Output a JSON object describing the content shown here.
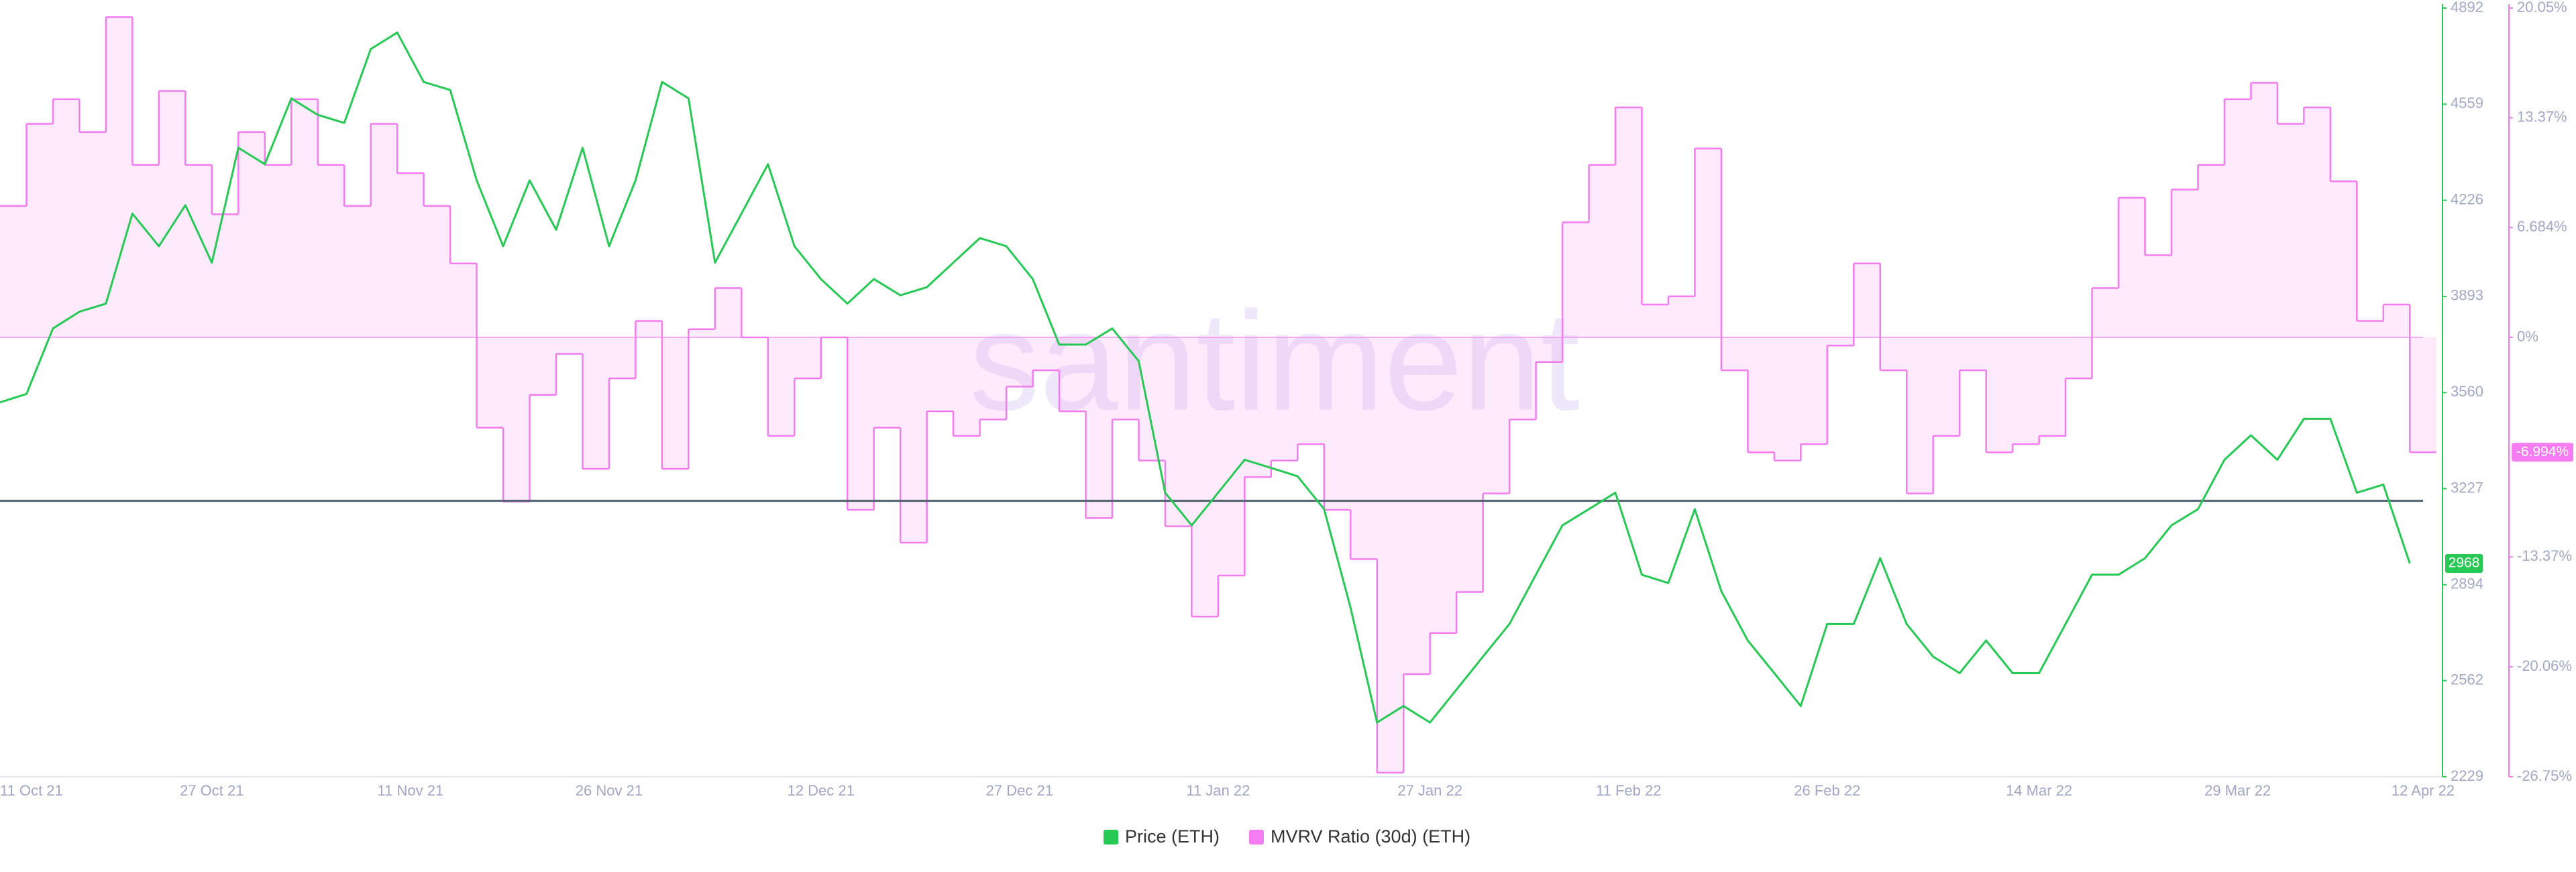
{
  "chart_data": {
    "type": "line",
    "watermark": "santiment",
    "x": [
      "2021-10-11",
      "2021-10-13",
      "2021-10-15",
      "2021-10-17",
      "2021-10-19",
      "2021-10-21",
      "2021-10-23",
      "2021-10-25",
      "2021-10-27",
      "2021-10-29",
      "2021-10-31",
      "2021-11-02",
      "2021-11-04",
      "2021-11-06",
      "2021-11-08",
      "2021-11-10",
      "2021-11-12",
      "2021-11-14",
      "2021-11-16",
      "2021-11-18",
      "2021-11-20",
      "2021-11-22",
      "2021-11-24",
      "2021-11-26",
      "2021-11-28",
      "2021-11-30",
      "2021-12-02",
      "2021-12-04",
      "2021-12-06",
      "2021-12-08",
      "2021-12-10",
      "2021-12-12",
      "2021-12-14",
      "2021-12-16",
      "2021-12-18",
      "2021-12-20",
      "2021-12-22",
      "2021-12-24",
      "2021-12-26",
      "2021-12-28",
      "2021-12-30",
      "2022-01-01",
      "2022-01-03",
      "2022-01-05",
      "2022-01-07",
      "2022-01-09",
      "2022-01-11",
      "2022-01-13",
      "2022-01-15",
      "2022-01-17",
      "2022-01-19",
      "2022-01-21",
      "2022-01-23",
      "2022-01-25",
      "2022-01-27",
      "2022-01-29",
      "2022-01-31",
      "2022-02-02",
      "2022-02-04",
      "2022-02-06",
      "2022-02-08",
      "2022-02-10",
      "2022-02-12",
      "2022-02-14",
      "2022-02-16",
      "2022-02-18",
      "2022-02-20",
      "2022-02-22",
      "2022-02-24",
      "2022-02-26",
      "2022-02-28",
      "2022-03-02",
      "2022-03-04",
      "2022-03-06",
      "2022-03-08",
      "2022-03-10",
      "2022-03-12",
      "2022-03-14",
      "2022-03-16",
      "2022-03-18",
      "2022-03-20",
      "2022-03-22",
      "2022-03-24",
      "2022-03-26",
      "2022-03-28",
      "2022-03-30",
      "2022-04-01",
      "2022-04-03",
      "2022-04-05",
      "2022-04-07",
      "2022-04-09",
      "2022-04-11"
    ],
    "xlim": [
      "2021-10-11",
      "2022-04-12"
    ],
    "xticks": [
      {
        "value": "2021-10-11",
        "label": "11 Oct 21"
      },
      {
        "value": "2021-10-27",
        "label": "27 Oct 21"
      },
      {
        "value": "2021-11-11",
        "label": "11 Nov 21"
      },
      {
        "value": "2021-11-26",
        "label": "26 Nov 21"
      },
      {
        "value": "2021-12-12",
        "label": "12 Dec 21"
      },
      {
        "value": "2021-12-27",
        "label": "27 Dec 21"
      },
      {
        "value": "2022-01-11",
        "label": "11 Jan 22"
      },
      {
        "value": "2022-01-27",
        "label": "27 Jan 22"
      },
      {
        "value": "2022-02-11",
        "label": "11 Feb 22"
      },
      {
        "value": "2022-02-26",
        "label": "26 Feb 22"
      },
      {
        "value": "2022-03-14",
        "label": "14 Mar 22"
      },
      {
        "value": "2022-03-29",
        "label": "29 Mar 22"
      },
      {
        "value": "2022-04-12",
        "label": "12 Apr 22"
      }
    ],
    "ylim": [
      2229,
      4892
    ],
    "yticks": [
      2229,
      2562,
      2894,
      3227,
      3560,
      3893,
      4226,
      4559,
      4892
    ],
    "y2lim": [
      -26.75,
      20.05
    ],
    "y2ticks": [
      {
        "value": -26.75,
        "label": "-26.75%"
      },
      {
        "value": -20.06,
        "label": "-20.06%"
      },
      {
        "value": -13.37,
        "label": "-13.37%"
      },
      {
        "value": 0,
        "label": "0%"
      },
      {
        "value": 6.684,
        "label": "6.684%"
      },
      {
        "value": 13.37,
        "label": "13.37%"
      },
      {
        "value": 20.05,
        "label": "20.05%"
      }
    ],
    "hline": {
      "value": 3185,
      "color": "#4e5f6e"
    },
    "series": [
      {
        "name": "Price (ETH)",
        "color": "#26c953",
        "axis": "y",
        "style": "line",
        "values": [
          3526,
          3555,
          3782,
          3840,
          3868,
          4180,
          4067,
          4209,
          4010,
          4408,
          4351,
          4579,
          4522,
          4494,
          4750,
          4807,
          4636,
          4608,
          4295,
          4067,
          4295,
          4124,
          4408,
          4067,
          4295,
          4636,
          4579,
          4010,
          4180,
          4351,
          4067,
          3953,
          3868,
          3953,
          3897,
          3925,
          4010,
          4095,
          4067,
          3953,
          3726,
          3726,
          3782,
          3669,
          3213,
          3100,
          3213,
          3327,
          3299,
          3270,
          3156,
          2815,
          2417,
          2474,
          2417,
          2531,
          2645,
          2758,
          2929,
          3100,
          3156,
          3213,
          2929,
          2900,
          3156,
          2872,
          2701,
          2588,
          2474,
          2758,
          2758,
          2986,
          2758,
          2645,
          2588,
          2701,
          2588,
          2588,
          2758,
          2929,
          2929,
          2986,
          3100,
          3156,
          3327,
          3412,
          3327,
          3469,
          3469,
          3213,
          3241,
          2968
        ]
      },
      {
        "name": "MVRV Ratio (30d) (ETH)",
        "color": "#f47cf0",
        "axis": "y2",
        "style": "step-area",
        "last_value_label": "-6.994%",
        "values": [
          8.0,
          13.0,
          14.5,
          12.5,
          19.5,
          10.5,
          15.0,
          10.5,
          7.5,
          12.5,
          10.5,
          14.5,
          10.5,
          8.0,
          13.0,
          10.0,
          8.0,
          4.5,
          -5.5,
          -10.0,
          -3.5,
          -1.0,
          -8.0,
          -2.5,
          1.0,
          -8.0,
          0.5,
          3.0,
          0,
          -6.0,
          -2.5,
          0,
          -10.5,
          -5.5,
          -12.5,
          -4.5,
          -6.0,
          -5.0,
          -3.0,
          -2.0,
          -4.5,
          -11.0,
          -5.0,
          -7.5,
          -11.5,
          -17.0,
          -14.5,
          -8.5,
          -7.5,
          -6.5,
          -10.5,
          -13.5,
          -26.5,
          -20.5,
          -18.0,
          -15.5,
          -9.5,
          -5.0,
          -1.5,
          7.0,
          10.5,
          14.0,
          2.0,
          2.5,
          11.5,
          -2.0,
          -7.0,
          -7.5,
          -6.5,
          -0.5,
          4.5,
          -2.0,
          -9.5,
          -6.0,
          -2.0,
          -7.0,
          -6.5,
          -6.0,
          -2.5,
          3.0,
          8.5,
          5.0,
          9.0,
          10.5,
          14.5,
          15.5,
          13.0,
          14.0,
          9.5,
          1.0,
          2.0,
          -6.994
        ]
      }
    ]
  }
}
